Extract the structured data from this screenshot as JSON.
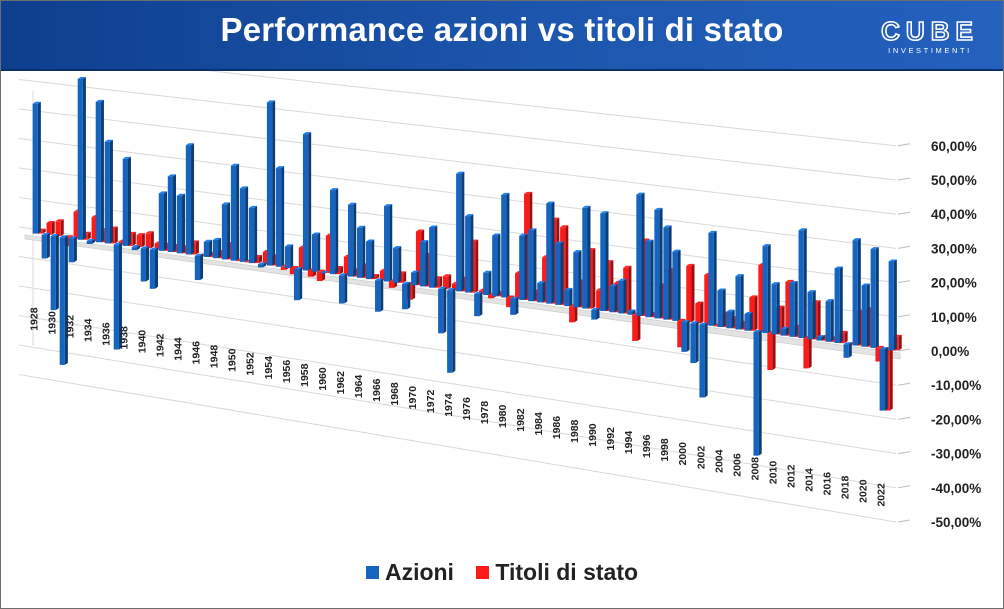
{
  "header": {
    "title": "Performance azioni vs titoli di stato",
    "logo_main": "CUBE",
    "logo_sub": "INVESTIMENTI",
    "background": "#1a4fa3"
  },
  "legend": {
    "items": [
      {
        "label": "Azioni",
        "color": "#1565c0"
      },
      {
        "label": "Titoli di stato",
        "color": "#ff1a1a"
      }
    ],
    "position": "bottom"
  },
  "chart_data": {
    "type": "bar",
    "title": "Performance azioni vs titoli di stato",
    "xlabel": "",
    "ylabel": "",
    "ylim": [
      -0.5,
      0.6
    ],
    "y_ticks": [
      0.6,
      0.5,
      0.4,
      0.3,
      0.2,
      0.1,
      0.0,
      -0.1,
      -0.2,
      -0.3,
      -0.4,
      -0.5
    ],
    "y_tick_labels": [
      "60,00%",
      "50,00%",
      "40,00%",
      "30,00%",
      "20,00%",
      "10,00%",
      "0,00%",
      "-10,00%",
      "-20,00%",
      "-30,00%",
      "-40,00%",
      "-50,00%"
    ],
    "grid": true,
    "three_d": true,
    "x_tick_labels": [
      "1928",
      "1930",
      "1932",
      "1934",
      "1936",
      "1938",
      "1940",
      "1942",
      "1944",
      "1946",
      "1948",
      "1950",
      "1952",
      "1954",
      "1956",
      "1958",
      "1960",
      "1962",
      "1964",
      "1966",
      "1968",
      "1970",
      "1972",
      "1974",
      "1976",
      "1978",
      "1980",
      "1982",
      "1984",
      "1986",
      "1988",
      "1990",
      "1992",
      "1994",
      "1996",
      "1998",
      "2000",
      "2002",
      "2004",
      "2006",
      "2008",
      "2010",
      "2012",
      "2014",
      "2016",
      "2018",
      "2020",
      "2022"
    ],
    "categories": [
      1928,
      1929,
      1930,
      1931,
      1932,
      1933,
      1934,
      1935,
      1936,
      1937,
      1938,
      1939,
      1940,
      1941,
      1942,
      1943,
      1944,
      1945,
      1946,
      1947,
      1948,
      1949,
      1950,
      1951,
      1952,
      1953,
      1954,
      1955,
      1956,
      1957,
      1958,
      1959,
      1960,
      1961,
      1962,
      1963,
      1964,
      1965,
      1966,
      1967,
      1968,
      1969,
      1970,
      1971,
      1972,
      1973,
      1974,
      1975,
      1976,
      1977,
      1978,
      1979,
      1980,
      1981,
      1982,
      1983,
      1984,
      1985,
      1986,
      1987,
      1988,
      1989,
      1990,
      1991,
      1992,
      1993,
      1994,
      1995,
      1996,
      1997,
      1998,
      1999,
      2000,
      2001,
      2002,
      2003,
      2004,
      2005,
      2006,
      2007,
      2008,
      2009,
      2010,
      2011,
      2012,
      2013,
      2014,
      2015,
      2016,
      2017,
      2018,
      2019,
      2020,
      2021,
      2022,
      2023
    ],
    "series": [
      {
        "name": "Azioni",
        "color": "#1565c0",
        "values": [
          0.44,
          -0.08,
          -0.25,
          -0.43,
          -0.08,
          0.54,
          -0.01,
          0.47,
          0.34,
          -0.35,
          0.29,
          -0.01,
          -0.11,
          -0.13,
          0.19,
          0.25,
          0.19,
          0.36,
          -0.08,
          0.05,
          0.06,
          0.18,
          0.31,
          0.24,
          0.18,
          -0.01,
          0.53,
          0.32,
          0.07,
          -0.1,
          0.44,
          0.12,
          0.0,
          0.27,
          -0.09,
          0.23,
          0.16,
          0.12,
          -0.1,
          0.24,
          0.11,
          -0.08,
          0.04,
          0.14,
          0.19,
          -0.14,
          -0.26,
          0.37,
          0.24,
          -0.07,
          0.07,
          0.19,
          0.32,
          -0.05,
          0.2,
          0.22,
          0.06,
          0.31,
          0.19,
          0.05,
          0.17,
          0.31,
          -0.03,
          0.3,
          0.08,
          0.1,
          0.01,
          0.37,
          0.23,
          0.33,
          0.28,
          0.21,
          -0.09,
          -0.12,
          -0.22,
          0.28,
          0.11,
          0.05,
          0.16,
          0.05,
          -0.37,
          0.26,
          0.15,
          0.02,
          0.16,
          0.32,
          0.14,
          0.01,
          0.12,
          0.22,
          -0.04,
          0.31,
          0.18,
          0.29,
          -0.18,
          0.26
        ]
      },
      {
        "name": "Titoli di stato",
        "color": "#ff1a1a",
        "values": [
          0.01,
          0.04,
          0.05,
          -0.03,
          0.09,
          0.02,
          0.08,
          0.04,
          0.05,
          0.01,
          0.04,
          0.04,
          0.05,
          0.02,
          0.02,
          0.02,
          0.02,
          0.04,
          0.0,
          0.01,
          0.02,
          0.05,
          -0.0,
          -0.0,
          0.02,
          0.04,
          0.03,
          -0.01,
          -0.02,
          0.07,
          -0.02,
          -0.03,
          0.12,
          0.02,
          0.06,
          0.02,
          0.04,
          0.01,
          0.03,
          -0.02,
          0.03,
          -0.05,
          0.17,
          0.1,
          0.03,
          0.04,
          0.02,
          0.04,
          0.16,
          0.01,
          -0.01,
          0.01,
          -0.03,
          0.08,
          0.33,
          0.03,
          0.14,
          0.26,
          0.24,
          -0.05,
          0.08,
          0.18,
          0.06,
          0.15,
          0.09,
          0.14,
          -0.08,
          0.23,
          0.01,
          0.1,
          0.15,
          -0.08,
          0.17,
          0.06,
          0.15,
          0.0,
          0.04,
          0.03,
          0.02,
          0.1,
          0.2,
          -0.11,
          0.08,
          0.16,
          0.03,
          -0.09,
          0.11,
          0.01,
          0.01,
          0.03,
          0.0,
          0.1,
          0.11,
          -0.04,
          -0.18,
          0.04
        ]
      }
    ]
  }
}
